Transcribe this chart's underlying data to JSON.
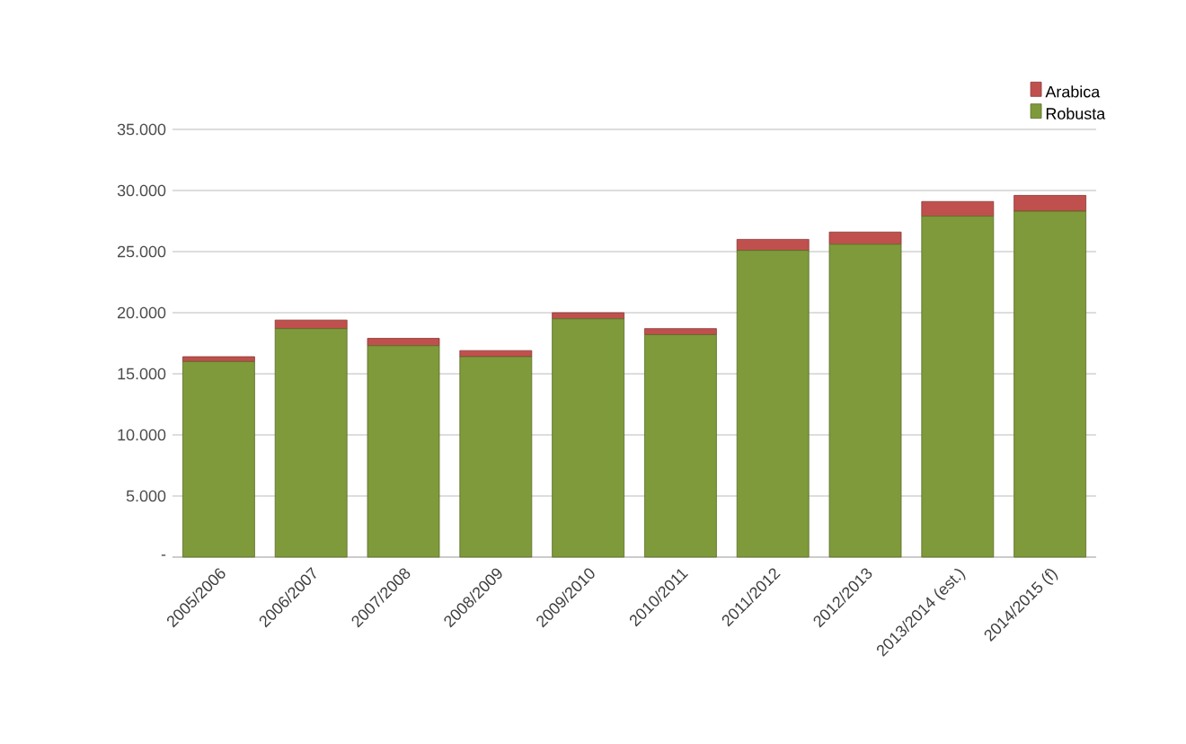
{
  "chart_data": {
    "type": "bar",
    "stacked": true,
    "categories": [
      "2005/2006",
      "2006/2007",
      "2007/2008",
      "2008/2009",
      "2009/2010",
      "2010/2011",
      "2011/2012",
      "2012/2013",
      "2013/2014 (est.)",
      "2014/2015 (f)"
    ],
    "series": [
      {
        "name": "Robusta",
        "color": "#7f9a3a",
        "values": [
          16000,
          18700,
          17300,
          16400,
          19500,
          18200,
          25100,
          25600,
          27900,
          28300
        ]
      },
      {
        "name": "Arabica",
        "color": "#c0504d",
        "values": [
          400,
          700,
          600,
          500,
          500,
          500,
          900,
          1000,
          1200,
          1300
        ]
      }
    ],
    "ylim": [
      0,
      35000
    ],
    "yticks": [
      {
        "value": 0,
        "label": "-"
      },
      {
        "value": 5000,
        "label": "5.000"
      },
      {
        "value": 10000,
        "label": "10.000"
      },
      {
        "value": 15000,
        "label": "15.000"
      },
      {
        "value": 20000,
        "label": "20.000"
      },
      {
        "value": 25000,
        "label": "25.000"
      },
      {
        "value": 30000,
        "label": "30.000"
      },
      {
        "value": 35000,
        "label": "35.000"
      }
    ],
    "grid": "y",
    "legend": "top right"
  }
}
